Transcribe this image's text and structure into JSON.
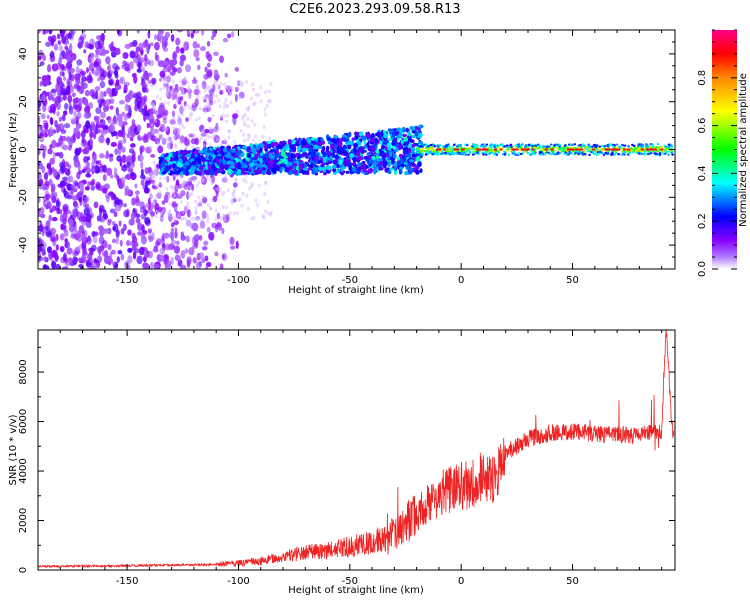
{
  "title": "C2E6.2023.293.09.58.R13",
  "colors": {
    "snr_line": "#ee2222",
    "spectrogram_bg": "#ffffff"
  },
  "chart_data": [
    {
      "type": "heatmap",
      "xlabel": "Height of straight line (km)",
      "ylabel": "Frequency (Hz)",
      "xlim": [
        -190,
        96
      ],
      "ylim": [
        -50,
        50
      ],
      "x_ticks": [
        -150,
        -100,
        -50,
        0,
        50
      ],
      "y_ticks": [
        -40,
        -20,
        0,
        20,
        40
      ],
      "colorbar": {
        "label": "Normalized spectral amplitude",
        "range": [
          0,
          1
        ],
        "ticks": [
          0.0,
          0.2,
          0.4,
          0.6,
          0.8
        ],
        "colors": [
          "#ffffff",
          "#8800ff",
          "#0000ff",
          "#00ffff",
          "#00ff00",
          "#ffff00",
          "#ff8800",
          "#ff0000",
          "#ff0088"
        ]
      },
      "description_of_structure": [
        {
          "x_range": [
            -190,
            -105
          ],
          "freq_range": [
            -50,
            50
          ],
          "amplitude": 0.1
        },
        {
          "x_range": [
            -135,
            -20
          ],
          "freq_center": -5,
          "freq_width": 8,
          "amplitude": 0.3
        },
        {
          "x_range": [
            -20,
            95
          ],
          "freq_center": 0,
          "freq_width": 2,
          "amplitude": 0.8
        }
      ]
    },
    {
      "type": "line",
      "xlabel": "Height of straight line (km)",
      "ylabel": "SNR (10 * v/v)",
      "xlim": [
        -190,
        96
      ],
      "ylim": [
        0,
        9700
      ],
      "x_ticks": [
        -150,
        -100,
        -50,
        0,
        50
      ],
      "y_ticks": [
        0,
        2000,
        4000,
        6000,
        8000
      ],
      "series": [
        {
          "x": [
            -190,
            -170,
            -150,
            -130,
            -110,
            -100,
            -90,
            -80,
            -70,
            -60,
            -50,
            -40,
            -30,
            -20,
            -15,
            -10,
            -5,
            0,
            5,
            10,
            15,
            20,
            25,
            30,
            40,
            50,
            60,
            70,
            80,
            90,
            92,
            95
          ],
          "values": [
            150,
            160,
            170,
            200,
            220,
            280,
            350,
            550,
            700,
            800,
            950,
            1100,
            1500,
            2200,
            2700,
            3000,
            3300,
            3400,
            3550,
            3600,
            3900,
            4600,
            5000,
            5300,
            5550,
            5600,
            5500,
            5450,
            5450,
            5600,
            9700,
            5400
          ]
        }
      ]
    }
  ]
}
